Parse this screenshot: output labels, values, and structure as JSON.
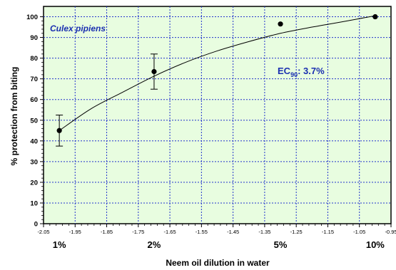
{
  "chart_data": {
    "type": "scatter",
    "xlabel": "Neem oil dilution in water",
    "ylabel": "% protection from biting",
    "annotation_species": "Culex pipiens",
    "annotation_ec_prefix": "EC",
    "annotation_ec_sub": "90",
    "annotation_ec_value": ": 3.7%",
    "xlim": [
      -2.05,
      -0.95
    ],
    "ylim": [
      0,
      105
    ],
    "x_ticks": [
      "-2.05",
      "-1.95",
      "-1.85",
      "-1.75",
      "-1.65",
      "-1.55",
      "-1.45",
      "-1.35",
      "-1.25",
      "-1.15",
      "-1.05",
      "-0.95"
    ],
    "y_ticks": [
      "0",
      "10",
      "20",
      "30",
      "40",
      "50",
      "60",
      "70",
      "80",
      "90",
      "100"
    ],
    "categories": [
      {
        "label": "1%",
        "x": -2.0
      },
      {
        "label": "2%",
        "x": -1.7
      },
      {
        "label": "5%",
        "x": -1.3
      },
      {
        "label": "10%",
        "x": -1.0
      }
    ],
    "points": [
      {
        "x": -2.0,
        "y": 45,
        "err": 7.5
      },
      {
        "x": -1.7,
        "y": 73.5,
        "err": 8.5
      },
      {
        "x": -1.3,
        "y": 96.5,
        "err": 0
      },
      {
        "x": -1.0,
        "y": 100,
        "err": 0
      }
    ],
    "fit_curve": [
      {
        "x": -2.0,
        "y": 45
      },
      {
        "x": -1.9,
        "y": 55.5
      },
      {
        "x": -1.8,
        "y": 63.5
      },
      {
        "x": -1.7,
        "y": 71.3
      },
      {
        "x": -1.6,
        "y": 78
      },
      {
        "x": -1.5,
        "y": 83.5
      },
      {
        "x": -1.4,
        "y": 88
      },
      {
        "x": -1.3,
        "y": 92
      },
      {
        "x": -1.2,
        "y": 95
      },
      {
        "x": -1.1,
        "y": 97.7
      },
      {
        "x": -1.0,
        "y": 100.5
      }
    ],
    "grid": true,
    "colors": {
      "plot_background": "#e8fde0",
      "grid": "#2233cc",
      "annotation": "#1a2fb0",
      "marker": "#000000"
    }
  }
}
